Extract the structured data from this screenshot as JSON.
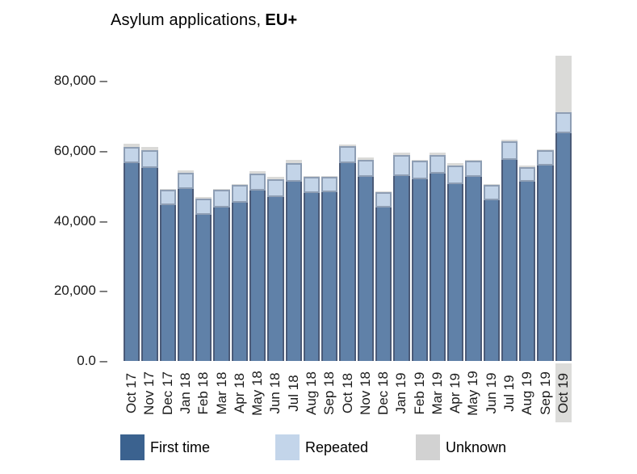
{
  "title": {
    "prefix": "Asylum applications,",
    "emphasis": "EU+"
  },
  "y_axis": {
    "labels": [
      "80,000 –",
      "60,000 –",
      "40,000 –",
      "20,000 –",
      "0.0 –"
    ],
    "values": [
      80000,
      60000,
      40000,
      20000,
      0
    ]
  },
  "legend": {
    "items": [
      {
        "label": "First time",
        "color": "#3b628f"
      },
      {
        "label": "Repeated",
        "color": "#c3d5ea"
      },
      {
        "label": "Unknown",
        "color": "#d2d2d2"
      }
    ]
  },
  "chart_data": {
    "type": "bar",
    "stacked": true,
    "title": "Asylum applications, EU+",
    "xlabel": "",
    "ylabel": "",
    "ylim": [
      0,
      89700
    ],
    "grid": false,
    "legend_position": "bottom",
    "highlight_category": "Oct 19",
    "highlight_color": "#dcdcda",
    "categories": [
      "Oct 17",
      "Nov 17",
      "Dec 17",
      "Jan 18",
      "Feb 18",
      "Mar 18",
      "Apr 18",
      "May 18",
      "Jun 18",
      "Jul 18",
      "Aug 18",
      "Sep 18",
      "Oct 18",
      "Nov 18",
      "Dec 18",
      "Jan 19",
      "Feb 19",
      "Mar 19",
      "Apr 19",
      "May 19",
      "Jun 19",
      "Jul 19",
      "Aug 19",
      "Sep 19",
      "Oct 19"
    ],
    "series": [
      {
        "name": "First time",
        "color": "#6081a8",
        "border_color": "#4a5a78",
        "values": [
          56400,
          55200,
          44400,
          49000,
          41700,
          43700,
          45100,
          48600,
          46700,
          51100,
          47900,
          48100,
          56600,
          52500,
          43700,
          52900,
          51800,
          53600,
          50600,
          52500,
          45800,
          57500,
          51300,
          55700,
          65100
        ]
      },
      {
        "name": "Repeated",
        "color": "#c3d4e8",
        "border_color": "#8e9eb4",
        "values": [
          4800,
          4900,
          4400,
          4800,
          4600,
          5100,
          5100,
          5000,
          5100,
          5500,
          4600,
          4400,
          4800,
          5000,
          4400,
          5800,
          5300,
          5100,
          5300,
          4600,
          4400,
          5100,
          4100,
          4400,
          6000
        ]
      },
      {
        "name": "Unknown",
        "color": "#dadad8",
        "border_color": "#dadad8",
        "values": [
          900,
          900,
          400,
          700,
          400,
          400,
          400,
          500,
          700,
          700,
          400,
          400,
          500,
          500,
          400,
          700,
          400,
          700,
          700,
          400,
          200,
          500,
          500,
          400,
          16100
        ]
      }
    ]
  }
}
